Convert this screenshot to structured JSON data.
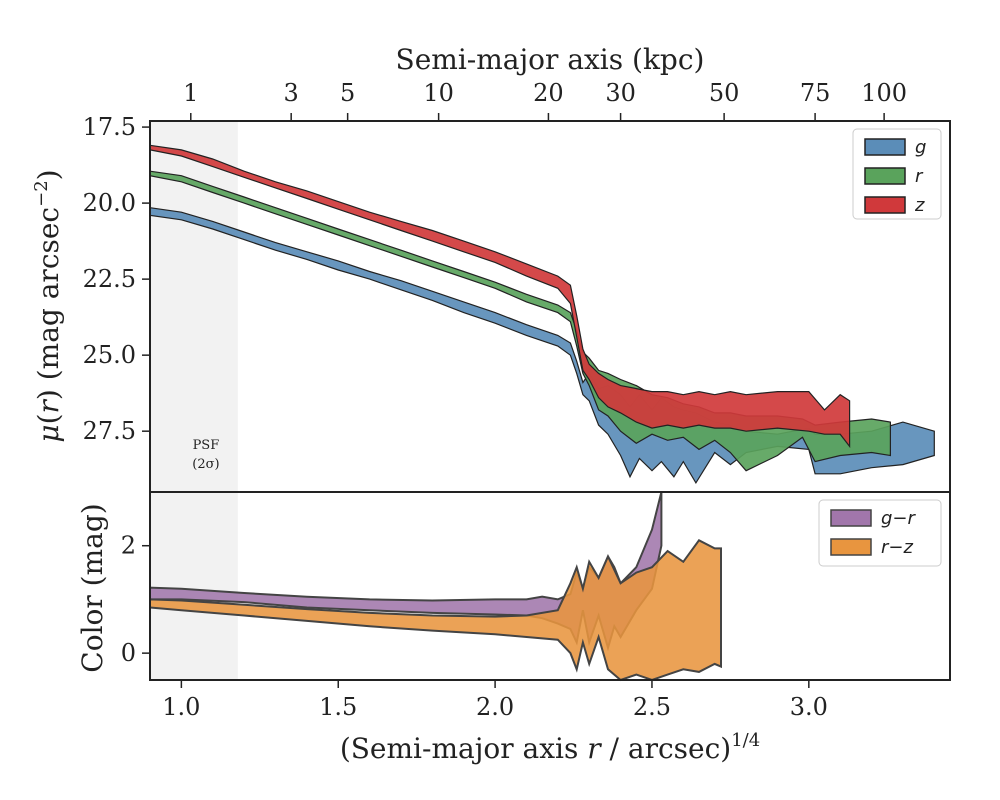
{
  "chart_data": [
    {
      "type": "area",
      "panel": "top",
      "xlabel": "(Semi-major axis r / arcsec)1/4",
      "top_xlabel": "Semi-major axis (kpc)",
      "ylabel": "μ(r) (mag arcsec−2)",
      "xlim": [
        0.9,
        3.45
      ],
      "ylim": [
        29.5,
        17.3
      ],
      "y_inverted": true,
      "yticks": [
        17.5,
        20.0,
        22.5,
        25.0,
        27.5
      ],
      "ytick_labels": [
        "17.5",
        "20.0",
        "22.5",
        "25.0",
        "27.5"
      ],
      "top_ticks_kpc": [
        1,
        3,
        5,
        10,
        20,
        30,
        50,
        75,
        100
      ],
      "top_ticks_x": [
        1.03,
        1.35,
        1.53,
        1.82,
        2.17,
        2.4,
        2.73,
        3.02,
        3.24
      ],
      "top_tick_labels": [
        "1",
        "3",
        "5",
        "10",
        "20",
        "30",
        "50",
        "75",
        "100"
      ],
      "legend_position": "upper-right",
      "psf_band": {
        "x0": 0.9,
        "x1": 1.18,
        "label_line1": "PSF",
        "label_line2": "(2σ)"
      },
      "series": [
        {
          "name": "g",
          "color": "#5b8db8",
          "x": [
            0.9,
            1.0,
            1.1,
            1.2,
            1.3,
            1.4,
            1.5,
            1.6,
            1.7,
            1.8,
            1.9,
            2.0,
            2.1,
            2.2,
            2.24,
            2.26,
            2.28,
            2.3,
            2.33,
            2.36,
            2.4,
            2.43,
            2.46,
            2.5,
            2.53,
            2.57,
            2.6,
            2.64,
            2.7,
            2.75,
            2.8,
            2.9,
            3.0,
            3.02,
            3.1,
            3.2,
            3.3,
            3.4
          ],
          "lower": [
            20.15,
            20.3,
            20.6,
            20.95,
            21.3,
            21.6,
            21.9,
            22.25,
            22.55,
            22.9,
            23.25,
            23.6,
            24.0,
            24.35,
            24.6,
            25.2,
            25.9,
            25.6,
            26.1,
            26.0,
            26.3,
            26.7,
            26.3,
            26.8,
            26.4,
            26.7,
            26.8,
            26.9,
            27.2,
            27.3,
            27.5,
            27.6,
            27.4,
            27.6,
            27.6,
            27.5,
            27.2,
            27.5
          ],
          "upper": [
            20.4,
            20.55,
            20.85,
            21.2,
            21.55,
            21.85,
            22.2,
            22.5,
            22.85,
            23.2,
            23.6,
            23.95,
            24.35,
            24.7,
            25.0,
            25.6,
            26.3,
            26.5,
            27.3,
            27.6,
            28.3,
            29.0,
            28.4,
            28.8,
            28.5,
            29.0,
            28.5,
            29.2,
            28.2,
            28.6,
            28.2,
            28.0,
            28.1,
            28.9,
            28.9,
            28.7,
            28.6,
            28.3
          ]
        },
        {
          "name": "r",
          "color": "#5aa35c",
          "x": [
            0.9,
            1.0,
            1.1,
            1.2,
            1.3,
            1.4,
            1.5,
            1.6,
            1.7,
            1.8,
            1.9,
            2.0,
            2.1,
            2.2,
            2.24,
            2.26,
            2.28,
            2.3,
            2.33,
            2.36,
            2.4,
            2.45,
            2.5,
            2.55,
            2.6,
            2.65,
            2.7,
            2.75,
            2.8,
            2.9,
            2.98,
            3.02,
            3.1,
            3.2,
            3.26
          ],
          "lower": [
            18.95,
            19.1,
            19.45,
            19.8,
            20.15,
            20.5,
            20.85,
            21.2,
            21.55,
            21.9,
            22.25,
            22.6,
            23.0,
            23.35,
            23.6,
            24.2,
            24.9,
            25.1,
            25.5,
            25.6,
            25.8,
            26.0,
            26.3,
            26.4,
            26.6,
            26.7,
            26.9,
            26.9,
            27.0,
            27.0,
            27.1,
            27.3,
            27.2,
            27.1,
            27.2
          ],
          "upper": [
            19.1,
            19.3,
            19.65,
            20.0,
            20.35,
            20.7,
            21.05,
            21.4,
            21.75,
            22.1,
            22.45,
            22.8,
            23.25,
            23.6,
            23.9,
            24.7,
            25.6,
            26.0,
            26.8,
            27.0,
            27.5,
            27.9,
            27.6,
            27.8,
            27.7,
            28.1,
            27.8,
            28.2,
            28.8,
            28.3,
            27.7,
            28.5,
            28.3,
            28.2,
            28.3
          ]
        },
        {
          "name": "z",
          "color": "#d0393b",
          "x": [
            0.9,
            1.0,
            1.1,
            1.2,
            1.3,
            1.4,
            1.5,
            1.6,
            1.7,
            1.8,
            1.9,
            2.0,
            2.1,
            2.2,
            2.24,
            2.26,
            2.28,
            2.3,
            2.33,
            2.36,
            2.4,
            2.45,
            2.5,
            2.55,
            2.6,
            2.65,
            2.7,
            2.75,
            2.8,
            2.9,
            3.0,
            3.05,
            3.1,
            3.13
          ],
          "lower": [
            18.1,
            18.25,
            18.55,
            18.95,
            19.3,
            19.6,
            19.95,
            20.3,
            20.6,
            20.9,
            21.25,
            21.6,
            22.0,
            22.4,
            22.7,
            23.7,
            24.8,
            25.3,
            25.6,
            25.8,
            26.0,
            26.1,
            26.2,
            26.2,
            26.3,
            26.2,
            26.3,
            26.2,
            26.3,
            26.2,
            26.2,
            26.8,
            26.3,
            26.5
          ],
          "upper": [
            18.25,
            18.45,
            18.8,
            19.15,
            19.5,
            19.85,
            20.2,
            20.55,
            20.9,
            21.25,
            21.6,
            21.95,
            22.4,
            22.8,
            23.3,
            24.4,
            25.5,
            25.8,
            26.4,
            26.7,
            26.9,
            27.2,
            27.4,
            27.3,
            27.4,
            27.3,
            27.4,
            27.4,
            27.5,
            27.4,
            27.5,
            27.6,
            27.6,
            28.0
          ]
        }
      ]
    },
    {
      "type": "area",
      "panel": "bottom",
      "ylabel": "Color (mag)",
      "xlim": [
        0.9,
        3.45
      ],
      "ylim": [
        -0.5,
        3.0
      ],
      "yticks": [
        0,
        2
      ],
      "ytick_labels": [
        "0",
        "2"
      ],
      "xticks": [
        1.0,
        1.5,
        2.0,
        2.5,
        3.0
      ],
      "xtick_labels": [
        "1.0",
        "1.5",
        "2.0",
        "2.5",
        "3.0"
      ],
      "legend_position": "upper-right",
      "series": [
        {
          "name": "g−r",
          "color": "#a176ab",
          "x": [
            0.9,
            1.0,
            1.2,
            1.4,
            1.6,
            1.8,
            2.0,
            2.1,
            2.15,
            2.2,
            2.24,
            2.26,
            2.28,
            2.3,
            2.33,
            2.36,
            2.38,
            2.4,
            2.45,
            2.5,
            2.53
          ],
          "lower": [
            1.0,
            1.0,
            0.95,
            0.85,
            0.8,
            0.75,
            0.72,
            0.7,
            0.65,
            0.55,
            0.45,
            0.2,
            0.8,
            0.2,
            0.7,
            0.1,
            0.5,
            0.3,
            0.8,
            1.2,
            2.0
          ],
          "upper": [
            1.22,
            1.2,
            1.12,
            1.05,
            1.0,
            0.98,
            1.0,
            1.0,
            1.05,
            1.0,
            1.1,
            1.5,
            1.2,
            1.6,
            1.4,
            1.8,
            1.6,
            1.3,
            1.6,
            2.3,
            3.0
          ]
        },
        {
          "name": "r−z",
          "color": "#e8953f",
          "x": [
            0.9,
            1.0,
            1.2,
            1.4,
            1.6,
            1.8,
            2.0,
            2.1,
            2.2,
            2.24,
            2.26,
            2.28,
            2.3,
            2.33,
            2.36,
            2.4,
            2.45,
            2.5,
            2.55,
            2.6,
            2.65,
            2.7,
            2.72
          ],
          "lower": [
            0.85,
            0.8,
            0.7,
            0.6,
            0.5,
            0.42,
            0.35,
            0.3,
            0.25,
            0.0,
            -0.3,
            0.2,
            -0.2,
            0.3,
            -0.3,
            -0.5,
            -0.4,
            -0.5,
            -0.4,
            -0.3,
            -0.35,
            -0.2,
            -0.25
          ],
          "upper": [
            1.0,
            0.98,
            0.9,
            0.82,
            0.75,
            0.7,
            0.68,
            0.7,
            0.8,
            1.3,
            1.6,
            1.2,
            1.7,
            1.4,
            1.8,
            1.3,
            1.5,
            1.6,
            1.9,
            1.7,
            2.1,
            1.95,
            1.95
          ]
        }
      ]
    }
  ]
}
